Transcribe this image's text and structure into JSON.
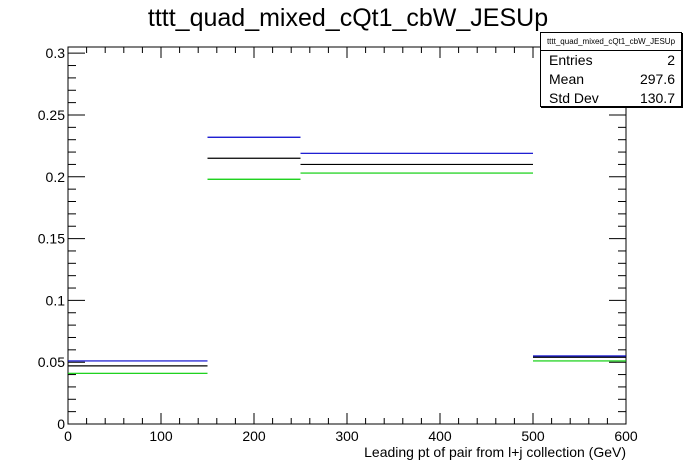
{
  "chart_data": {
    "type": "step-histogram",
    "title": "tttt_quad_mixed_cQt1_cbW_JESUp",
    "xlabel": "Leading pt of pair from l+j collection (GeV)",
    "ylabel": "",
    "xlim": [
      0,
      600
    ],
    "ylim": [
      0,
      0.305
    ],
    "x_ticks": [
      0,
      100,
      200,
      300,
      400,
      500,
      600
    ],
    "y_ticks": [
      0,
      0.05,
      0.1,
      0.15,
      0.2,
      0.25,
      0.3
    ],
    "x_tick_labels": [
      "0",
      "100",
      "200",
      "300",
      "400",
      "500",
      "600"
    ],
    "y_tick_labels": [
      "0",
      "0.05",
      "0.1",
      "0.15",
      "0.2",
      "0.25",
      "0.3"
    ],
    "bin_edges": [
      0,
      150,
      250,
      500,
      600
    ],
    "series": [
      {
        "color": "#0000cc",
        "values": [
          0.051,
          0.232,
          0.219,
          0.055
        ]
      },
      {
        "color": "#000000",
        "values": [
          0.047,
          0.215,
          0.21,
          0.054
        ]
      },
      {
        "color": "#00cc00",
        "values": [
          0.041,
          0.198,
          0.203,
          0.051
        ]
      }
    ],
    "grid": false,
    "stats": {
      "name": "tttt_quad_mixed_cQt1_cbW_JESUp",
      "rows": [
        {
          "label": "Entries",
          "value": "2"
        },
        {
          "label": "Mean",
          "value": "297.6"
        },
        {
          "label": "Std Dev",
          "value": "130.7"
        }
      ]
    }
  }
}
